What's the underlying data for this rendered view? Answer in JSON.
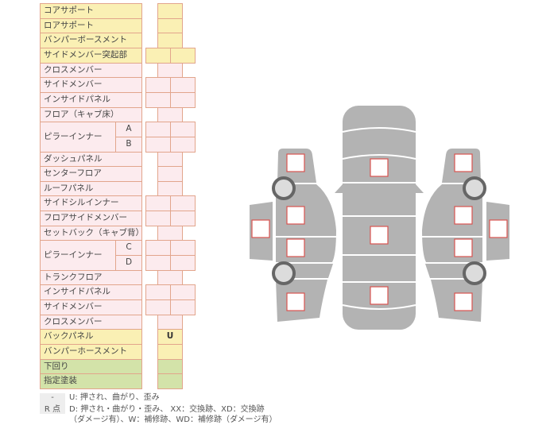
{
  "rows": [
    {
      "label": "コアサポート",
      "color": "y",
      "cells": "single"
    },
    {
      "label": "ロアサポート",
      "color": "y",
      "cells": "single"
    },
    {
      "label": "バンパーボースメント",
      "color": "y",
      "cells": "single"
    },
    {
      "label": "サイドメンバー突起部",
      "color": "y",
      "cells": "double"
    },
    {
      "label": "クロスメンバー",
      "color": "p",
      "cells": "single"
    },
    {
      "label": "サイドメンバー",
      "color": "p",
      "cells": "double"
    },
    {
      "label": "インサイドパネル",
      "color": "p",
      "cells": "double"
    },
    {
      "label": "フロア（キャブ床）",
      "color": "p",
      "cells": "single"
    },
    {
      "label": "ピラーインナー",
      "color": "p",
      "cells": "double",
      "subs": [
        "A",
        "B"
      ]
    },
    {
      "label": "ダッシュパネル",
      "color": "p",
      "cells": "single"
    },
    {
      "label": "センターフロア",
      "color": "p",
      "cells": "single"
    },
    {
      "label": "ルーフパネル",
      "color": "p",
      "cells": "single"
    },
    {
      "label": "サイドシルインナー",
      "color": "p",
      "cells": "double"
    },
    {
      "label": "フロアサイドメンバー",
      "color": "p",
      "cells": "double"
    },
    {
      "label": "セットバック（キャブ背）",
      "color": "p",
      "cells": "single"
    },
    {
      "label": "ピラーインナー",
      "color": "p",
      "cells": "double",
      "subs": [
        "C",
        "D"
      ]
    },
    {
      "label": "トランクフロア",
      "color": "p",
      "cells": "single"
    },
    {
      "label": "インサイドパネル",
      "color": "p",
      "cells": "double"
    },
    {
      "label": "サイドメンバー",
      "color": "p",
      "cells": "double"
    },
    {
      "label": "クロスメンバー",
      "color": "p",
      "cells": "single"
    },
    {
      "label": "バックパネル",
      "color": "y",
      "cells": "single",
      "mark": "U"
    },
    {
      "label": "バンパーホースメント",
      "color": "y",
      "cells": "single"
    },
    {
      "label": "下回り",
      "color": "g",
      "cells": "single"
    },
    {
      "label": "指定塗装",
      "color": "g",
      "cells": "single"
    }
  ],
  "legend": [
    {
      "key": "-",
      "text": "U: 押され、曲がり、歪み"
    },
    {
      "key": "R 点",
      "text": "D: 押され・曲がり・歪み、 XX：交換跡、XD：交換跡",
      "text2": "（ダメージ有）、W：補修跡、WD：補修跡（ダメージ有）"
    }
  ],
  "colors": {
    "yellow": "#faf0b4",
    "pink": "#fcebee",
    "green": "#d3e3a9",
    "border": "#e2a58c",
    "car": "#b3b3b3",
    "marker": "#d9534f"
  }
}
